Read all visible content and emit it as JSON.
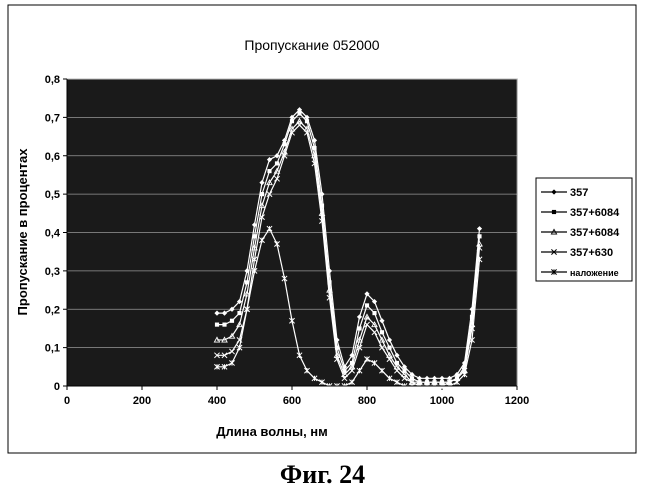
{
  "caption": "Фиг. 24",
  "chart_data": {
    "type": "line",
    "title": "Пропускание 052000",
    "xlabel": "Длина волны, нм",
    "ylabel": "Пропускание в процентах",
    "xlim": [
      0,
      1200
    ],
    "ylim": [
      0,
      0.8
    ],
    "x_ticks": [
      0,
      200,
      400,
      600,
      800,
      1000,
      1200
    ],
    "y_ticks": [
      0,
      0.1,
      0.2,
      0.3,
      0.4,
      0.5,
      0.6,
      0.7,
      0.8
    ],
    "x_tick_labels": [
      "0",
      "200",
      "400",
      "600",
      "800",
      "1000",
      "1200"
    ],
    "y_tick_labels": [
      "0",
      "0,1",
      "0,2",
      "0,3",
      "0,4",
      "0,5",
      "0,6",
      "0,7",
      "0,8"
    ],
    "grid": true,
    "legend_position": "right",
    "plot_background": "#1a1a1a",
    "line_color": "#ffffff",
    "series": [
      {
        "name": "357",
        "marker": "diamond",
        "x": [
          400,
          420,
          440,
          460,
          480,
          500,
          520,
          540,
          560,
          580,
          600,
          620,
          640,
          660,
          680,
          700,
          720,
          740,
          760,
          780,
          800,
          820,
          840,
          860,
          880,
          900,
          920,
          940,
          960,
          980,
          1000,
          1020,
          1040,
          1060,
          1080,
          1100
        ],
        "y": [
          0.19,
          0.19,
          0.2,
          0.22,
          0.3,
          0.42,
          0.53,
          0.59,
          0.6,
          0.64,
          0.7,
          0.72,
          0.7,
          0.64,
          0.5,
          0.3,
          0.12,
          0.05,
          0.08,
          0.18,
          0.24,
          0.22,
          0.17,
          0.12,
          0.08,
          0.05,
          0.03,
          0.02,
          0.02,
          0.02,
          0.02,
          0.02,
          0.03,
          0.06,
          0.2,
          0.41
        ]
      },
      {
        "name": "357+6084",
        "marker": "square",
        "x": [
          400,
          420,
          440,
          460,
          480,
          500,
          520,
          540,
          560,
          580,
          600,
          620,
          640,
          660,
          680,
          700,
          720,
          740,
          760,
          780,
          800,
          820,
          840,
          860,
          880,
          900,
          920,
          940,
          960,
          980,
          1000,
          1020,
          1040,
          1060,
          1080,
          1100
        ],
        "y": [
          0.16,
          0.16,
          0.17,
          0.19,
          0.27,
          0.39,
          0.5,
          0.56,
          0.58,
          0.63,
          0.69,
          0.71,
          0.69,
          0.62,
          0.47,
          0.27,
          0.1,
          0.04,
          0.06,
          0.15,
          0.21,
          0.19,
          0.14,
          0.1,
          0.06,
          0.04,
          0.02,
          0.01,
          0.01,
          0.01,
          0.01,
          0.01,
          0.02,
          0.05,
          0.18,
          0.39
        ]
      },
      {
        "name": "357+6084",
        "marker": "triangle",
        "x": [
          400,
          420,
          440,
          460,
          480,
          500,
          520,
          540,
          560,
          580,
          600,
          620,
          640,
          660,
          680,
          700,
          720,
          740,
          760,
          780,
          800,
          820,
          840,
          860,
          880,
          900,
          920,
          940,
          960,
          980,
          1000,
          1020,
          1040,
          1060,
          1080,
          1100
        ],
        "y": [
          0.12,
          0.12,
          0.13,
          0.16,
          0.24,
          0.36,
          0.47,
          0.53,
          0.56,
          0.61,
          0.67,
          0.69,
          0.67,
          0.6,
          0.45,
          0.25,
          0.08,
          0.03,
          0.05,
          0.12,
          0.18,
          0.16,
          0.12,
          0.08,
          0.05,
          0.03,
          0.01,
          0.01,
          0.01,
          0.01,
          0.01,
          0.01,
          0.02,
          0.04,
          0.16,
          0.37
        ]
      },
      {
        "name": "357+630",
        "marker": "x",
        "x": [
          400,
          420,
          440,
          460,
          480,
          500,
          520,
          540,
          560,
          580,
          600,
          620,
          640,
          660,
          680,
          700,
          720,
          740,
          760,
          780,
          800,
          820,
          840,
          860,
          880,
          900,
          920,
          940,
          960,
          980,
          1000,
          1020,
          1040,
          1060,
          1080,
          1100
        ],
        "y": [
          0.08,
          0.08,
          0.09,
          0.12,
          0.2,
          0.33,
          0.44,
          0.5,
          0.54,
          0.6,
          0.66,
          0.68,
          0.66,
          0.58,
          0.43,
          0.23,
          0.07,
          0.02,
          0.04,
          0.1,
          0.16,
          0.14,
          0.1,
          0.07,
          0.04,
          0.02,
          0.01,
          0.0,
          0.0,
          0.0,
          0.0,
          0.01,
          0.02,
          0.04,
          0.15,
          0.36
        ]
      },
      {
        "name": "наложение",
        "marker": "star",
        "x": [
          400,
          420,
          440,
          460,
          480,
          500,
          520,
          540,
          560,
          580,
          600,
          620,
          640,
          660,
          680,
          700,
          720,
          740,
          760,
          780,
          800,
          820,
          840,
          860,
          880,
          900,
          920,
          940,
          960,
          980,
          1000,
          1020,
          1040,
          1060,
          1080,
          1100
        ],
        "y": [
          0.05,
          0.05,
          0.06,
          0.1,
          0.2,
          0.3,
          0.38,
          0.41,
          0.37,
          0.28,
          0.17,
          0.08,
          0.04,
          0.02,
          0.01,
          0.0,
          0.0,
          0.0,
          0.01,
          0.04,
          0.07,
          0.06,
          0.04,
          0.02,
          0.01,
          0.0,
          0.0,
          0.0,
          0.0,
          0.0,
          0.0,
          0.0,
          0.01,
          0.03,
          0.12,
          0.33
        ]
      }
    ]
  }
}
